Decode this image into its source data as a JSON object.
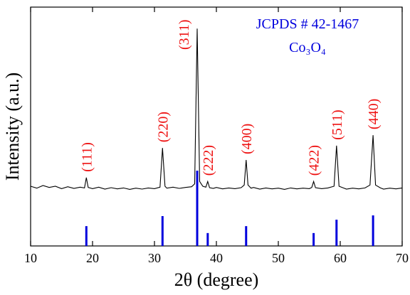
{
  "chart_data": {
    "type": "xrd",
    "xlabel": "2θ (degree)",
    "ylabel": "Intensity (a.u.)",
    "reference_title": "JCPDS # 42-1467",
    "compound": "Co₃O₄",
    "xlim": [
      10,
      70
    ],
    "xticks": [
      10,
      20,
      30,
      40,
      50,
      60,
      70
    ],
    "ylim": [
      0,
      100
    ],
    "pattern": {
      "color": "#000000",
      "x": [
        10,
        11,
        12,
        13,
        14,
        15,
        16,
        17,
        18,
        18.7,
        19.0,
        19.3,
        20,
        21,
        22,
        23,
        24,
        25,
        26,
        27,
        28,
        29,
        30,
        30.9,
        31.3,
        31.7,
        32,
        33,
        34,
        35,
        36,
        36.5,
        36.9,
        37.3,
        37.8,
        38.3,
        38.6,
        38.9,
        39.5,
        40,
        41,
        42,
        43,
        44,
        44.5,
        44.8,
        45.1,
        45.6,
        46,
        47,
        48,
        49,
        50,
        51,
        52,
        53,
        54,
        55,
        55.4,
        55.7,
        56,
        57,
        58,
        59,
        59.4,
        59.8,
        60.5,
        61,
        62,
        63,
        64,
        64.8,
        65.3,
        65.7,
        66.5,
        67,
        68,
        69,
        70
      ],
      "values": [
        25,
        24.2,
        25.3,
        24.5,
        25,
        24,
        24.8,
        24.1,
        24.6,
        24.3,
        28.6,
        24.5,
        24,
        24.6,
        23.8,
        24.4,
        23.9,
        24.3,
        23.7,
        24.2,
        23.8,
        24.3,
        24,
        24.6,
        41,
        25,
        24.2,
        24.6,
        24.1,
        24.5,
        24.8,
        26,
        91,
        27,
        25,
        24.6,
        27,
        24.4,
        24.1,
        24.5,
        23.9,
        24.3,
        24,
        24.4,
        25.5,
        36,
        25.5,
        24.2,
        24.5,
        23.8,
        24.3,
        23.9,
        24.2,
        23.7,
        24.3,
        23.9,
        24.2,
        24,
        24.5,
        27,
        24.4,
        24,
        24.3,
        25,
        42,
        25,
        24.3,
        23.8,
        24.2,
        23.9,
        24.3,
        25.5,
        46.4,
        25.5,
        24.3,
        23.8,
        24.2,
        23.9,
        24.3
      ]
    },
    "reference": {
      "color": "#0000dd",
      "x": [
        19.0,
        31.3,
        36.9,
        38.6,
        44.8,
        55.7,
        59.4,
        65.3
      ],
      "values": [
        8.3,
        12.5,
        31.5,
        5.4,
        8.3,
        5.4,
        11,
        12.8
      ],
      "labels": [
        "(111)",
        "(220)",
        "(311)",
        "(222)",
        "(400)",
        "(422)",
        "(511)",
        "(440)"
      ],
      "label_color": "#ee1111"
    }
  }
}
